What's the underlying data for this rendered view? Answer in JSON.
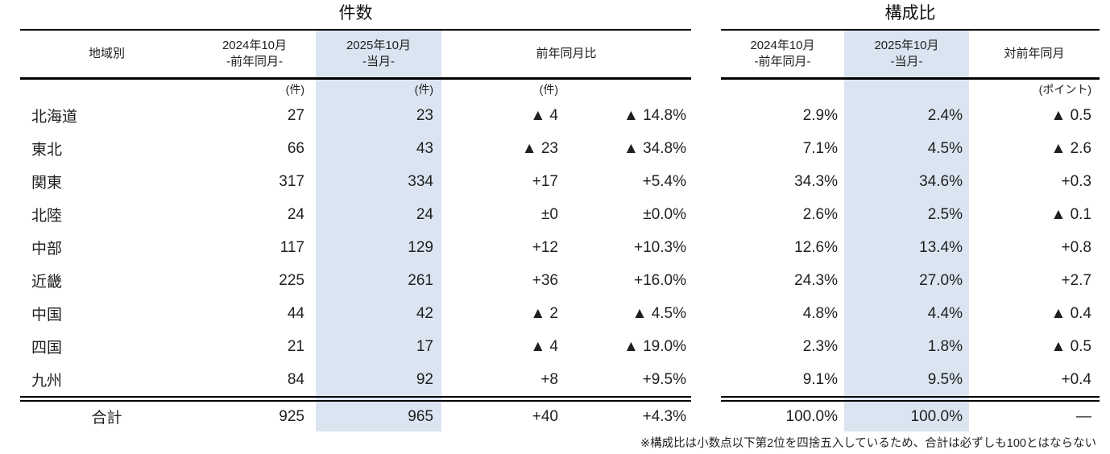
{
  "tables": {
    "left": {
      "title": "件数",
      "header": {
        "region": "地域別",
        "y2024_line1": "2024年10月",
        "y2024_line2": "-前年同月-",
        "y2025_line1": "2025年10月",
        "y2025_line2": "-当月-",
        "diff": "前年同月比"
      },
      "units": {
        "u2024": "(件)",
        "u2025": "(件)",
        "udiff": "(件)"
      },
      "rows": [
        {
          "region": "北海道",
          "v2024": "27",
          "v2025": "23",
          "diff": "▲ 4",
          "diff_pct": "▲ 14.8%"
        },
        {
          "region": "東北",
          "v2024": "66",
          "v2025": "43",
          "diff": "▲ 23",
          "diff_pct": "▲ 34.8%"
        },
        {
          "region": "関東",
          "v2024": "317",
          "v2025": "334",
          "diff": "+17",
          "diff_pct": "+5.4%"
        },
        {
          "region": "北陸",
          "v2024": "24",
          "v2025": "24",
          "diff": "±0",
          "diff_pct": "±0.0%"
        },
        {
          "region": "中部",
          "v2024": "117",
          "v2025": "129",
          "diff": "+12",
          "diff_pct": "+10.3%"
        },
        {
          "region": "近畿",
          "v2024": "225",
          "v2025": "261",
          "diff": "+36",
          "diff_pct": "+16.0%"
        },
        {
          "region": "中国",
          "v2024": "44",
          "v2025": "42",
          "diff": "▲ 2",
          "diff_pct": "▲ 4.5%"
        },
        {
          "region": "四国",
          "v2024": "21",
          "v2025": "17",
          "diff": "▲ 4",
          "diff_pct": "▲ 19.0%"
        },
        {
          "region": "九州",
          "v2024": "84",
          "v2025": "92",
          "diff": "+8",
          "diff_pct": "+9.5%"
        }
      ],
      "total": {
        "label": "合計",
        "v2024": "925",
        "v2025": "965",
        "diff": "+40",
        "diff_pct": "+4.3%"
      }
    },
    "right": {
      "title": "構成比",
      "header": {
        "y2024_line1": "2024年10月",
        "y2024_line2": "-前年同月-",
        "y2025_line1": "2025年10月",
        "y2025_line2": "-当月-",
        "diff": "対前年同月"
      },
      "units": {
        "udiff": "(ポイント)"
      },
      "rows": [
        {
          "s2024": "2.9%",
          "s2025": "2.4%",
          "s_diff": "▲ 0.5"
        },
        {
          "s2024": "7.1%",
          "s2025": "4.5%",
          "s_diff": "▲ 2.6"
        },
        {
          "s2024": "34.3%",
          "s2025": "34.6%",
          "s_diff": "+0.3"
        },
        {
          "s2024": "2.6%",
          "s2025": "2.5%",
          "s_diff": "▲ 0.1"
        },
        {
          "s2024": "12.6%",
          "s2025": "13.4%",
          "s_diff": "+0.8"
        },
        {
          "s2024": "24.3%",
          "s2025": "27.0%",
          "s_diff": "+2.7"
        },
        {
          "s2024": "4.8%",
          "s2025": "4.4%",
          "s_diff": "▲ 0.4"
        },
        {
          "s2024": "2.3%",
          "s2025": "1.8%",
          "s_diff": "▲ 0.5"
        },
        {
          "s2024": "9.1%",
          "s2025": "9.5%",
          "s_diff": "+0.4"
        }
      ],
      "total": {
        "s2024": "100.0%",
        "s2025": "100.0%",
        "s_diff": "—"
      }
    }
  },
  "footnote": "※構成比は小数点以下第2位を四捨五入しているため、合計は必ずしも100とはならない",
  "colors": {
    "highlight": "#dbe5f1",
    "text": "#1f1f1f",
    "line": "#000000"
  },
  "chart_data": {
    "type": "table",
    "titles": [
      "件数",
      "構成比"
    ],
    "columns": [
      "地域別",
      "件数 2024年10月 -前年同月- (件)",
      "件数 2025年10月 -当月- (件)",
      "前年同月比 (件)",
      "前年同月比 (%)",
      "構成比 2024年10月 -前年同月- (%)",
      "構成比 2025年10月 -当月- (%)",
      "対前年同月 (ポイント)"
    ],
    "rows": [
      {
        "region": "北海道",
        "count_2024": 27,
        "count_2025": 23,
        "diff": -4,
        "diff_pct": -14.8,
        "share_2024": 2.9,
        "share_2025": 2.4,
        "share_diff_pt": -0.5
      },
      {
        "region": "東北",
        "count_2024": 66,
        "count_2025": 43,
        "diff": -23,
        "diff_pct": -34.8,
        "share_2024": 7.1,
        "share_2025": 4.5,
        "share_diff_pt": -2.6
      },
      {
        "region": "関東",
        "count_2024": 317,
        "count_2025": 334,
        "diff": 17,
        "diff_pct": 5.4,
        "share_2024": 34.3,
        "share_2025": 34.6,
        "share_diff_pt": 0.3
      },
      {
        "region": "北陸",
        "count_2024": 24,
        "count_2025": 24,
        "diff": 0,
        "diff_pct": 0.0,
        "share_2024": 2.6,
        "share_2025": 2.5,
        "share_diff_pt": -0.1
      },
      {
        "region": "中部",
        "count_2024": 117,
        "count_2025": 129,
        "diff": 12,
        "diff_pct": 10.3,
        "share_2024": 12.6,
        "share_2025": 13.4,
        "share_diff_pt": 0.8
      },
      {
        "region": "近畿",
        "count_2024": 225,
        "count_2025": 261,
        "diff": 36,
        "diff_pct": 16.0,
        "share_2024": 24.3,
        "share_2025": 27.0,
        "share_diff_pt": 2.7
      },
      {
        "region": "中国",
        "count_2024": 44,
        "count_2025": 42,
        "diff": -2,
        "diff_pct": -4.5,
        "share_2024": 4.8,
        "share_2025": 4.4,
        "share_diff_pt": -0.4
      },
      {
        "region": "四国",
        "count_2024": 21,
        "count_2025": 17,
        "diff": -4,
        "diff_pct": -19.0,
        "share_2024": 2.3,
        "share_2025": 1.8,
        "share_diff_pt": -0.5
      },
      {
        "region": "九州",
        "count_2024": 84,
        "count_2025": 92,
        "diff": 8,
        "diff_pct": 9.5,
        "share_2024": 9.1,
        "share_2025": 9.5,
        "share_diff_pt": 0.4
      }
    ],
    "total_row": {
      "region": "合計",
      "count_2024": 925,
      "count_2025": 965,
      "diff": 40,
      "diff_pct": 4.3,
      "share_2024": 100.0,
      "share_2025": 100.0,
      "share_diff_pt": null
    },
    "negative_marker": "▲",
    "layout": {
      "highlight_column": "2025年10月 -当月-",
      "grid": "horizontal rules only",
      "double_rule_above_total": true
    }
  }
}
